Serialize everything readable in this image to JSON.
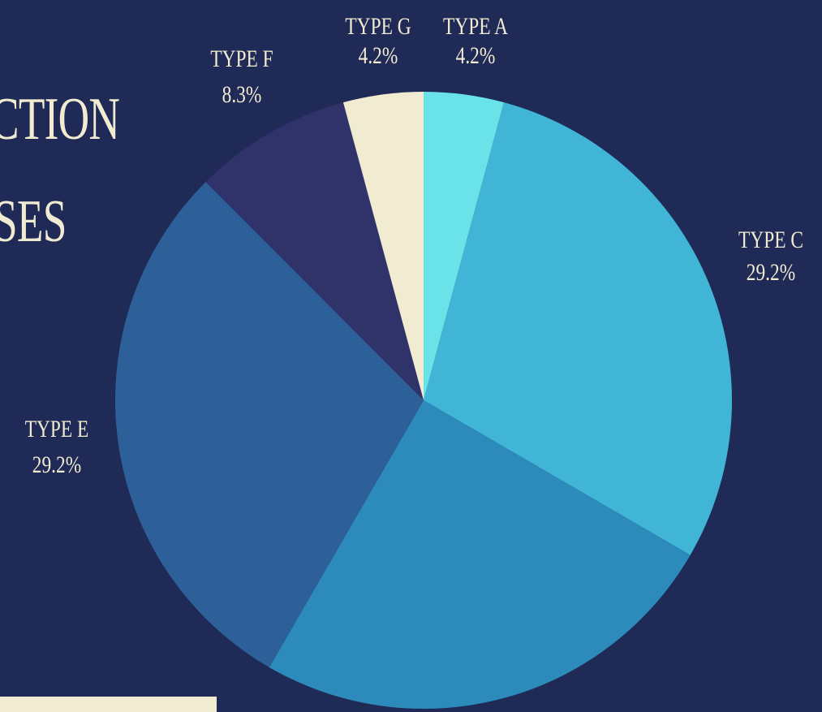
{
  "heading": {
    "line1": "CTION",
    "line2": "SES"
  },
  "chart_data": {
    "type": "pie",
    "start_angle_deg": 0,
    "direction": "clockwise",
    "slices": [
      {
        "label": "TYPE A",
        "value": 4.2,
        "display": "4.2%",
        "color": "#69e2e8",
        "show_label": true
      },
      {
        "label": "TYPE C",
        "value": 29.2,
        "display": "29.2%",
        "color": "#41b5d5",
        "show_label": true
      },
      {
        "label": "",
        "value": 25.0,
        "display": "",
        "color": "#2c8bbb",
        "show_label": false
      },
      {
        "label": "TYPE E",
        "value": 29.2,
        "display": "29.2%",
        "color": "#2d5f99",
        "show_label": true
      },
      {
        "label": "TYPE F",
        "value": 8.3,
        "display": "8.3%",
        "color": "#30326a",
        "show_label": true
      },
      {
        "label": "TYPE G",
        "value": 4.2,
        "display": "4.2%",
        "color": "#f1ecd1",
        "show_label": true
      }
    ]
  },
  "colors": {
    "background": "#1f2a57",
    "text": "#f1ecd1",
    "accent_bar": "#f1ecd1"
  }
}
